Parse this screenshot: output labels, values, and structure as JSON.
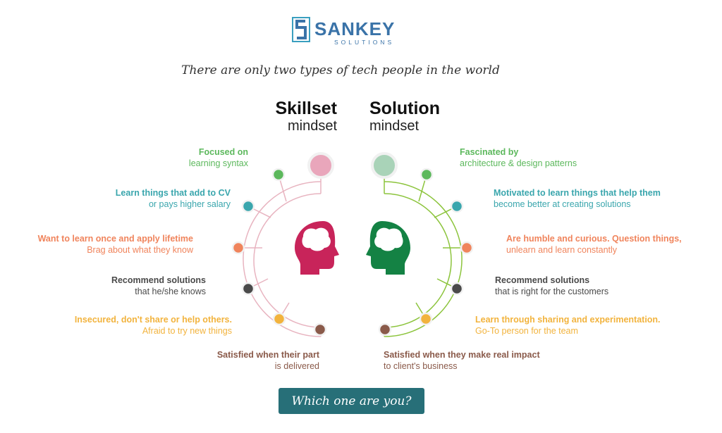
{
  "logo": {
    "name": "SANKEY",
    "subtitle": "SOLUTIONS",
    "brand_color": "#3a73a8",
    "icon": "sankey-logo-icon"
  },
  "tagline": "There are only two types of tech people in the world",
  "left": {
    "title": "Skillset",
    "subtitle": "mindset",
    "head_color": "#c8245a",
    "line_color": "#e8b4c0",
    "items": [
      {
        "line1": "Focused on",
        "line2": "learning syntax",
        "color": "#5cb85c"
      },
      {
        "line1": "Learn things that add to CV",
        "line2": "or pays higher salary",
        "color": "#3aa6ad"
      },
      {
        "line1": "Want to learn once and apply lifetime",
        "line2": "Brag about what they know",
        "color": "#f0845c"
      },
      {
        "line1": "Recommend solutions",
        "line2": "that he/she knows",
        "color": "#4a4a4a"
      },
      {
        "line1": "Insecured, don't share or help others.",
        "line2": "Afraid to try new things",
        "color": "#f2b33d"
      },
      {
        "line1": "Satisfied when their part",
        "line2": "is delivered",
        "color": "#8a5a4a"
      }
    ]
  },
  "right": {
    "title": "Solution",
    "subtitle": "mindset",
    "head_color": "#148244",
    "line_color": "#8cc43c",
    "items": [
      {
        "line1": "Fascinated by",
        "line2": "architecture & design patterns",
        "color": "#5cb85c"
      },
      {
        "line1": "Motivated to learn things that help them",
        "line2": "become better at creating solutions",
        "color": "#3aa6ad"
      },
      {
        "line1": "Are humble and curious. Question things,",
        "line2": "unlearn and learn constantly",
        "color": "#f0845c"
      },
      {
        "line1": "Recommend solutions",
        "line2": "that is  right for the customers",
        "color": "#4a4a4a"
      },
      {
        "line1": "Learn through sharing and experimentation.",
        "line2": "Go-To person for the team",
        "color": "#f2b33d"
      },
      {
        "line1": "Satisfied when they make real impact",
        "line2": "to client's business",
        "color": "#8a5a4a"
      }
    ]
  },
  "cta": {
    "label": "Which one are you?",
    "color": "#276f78"
  }
}
